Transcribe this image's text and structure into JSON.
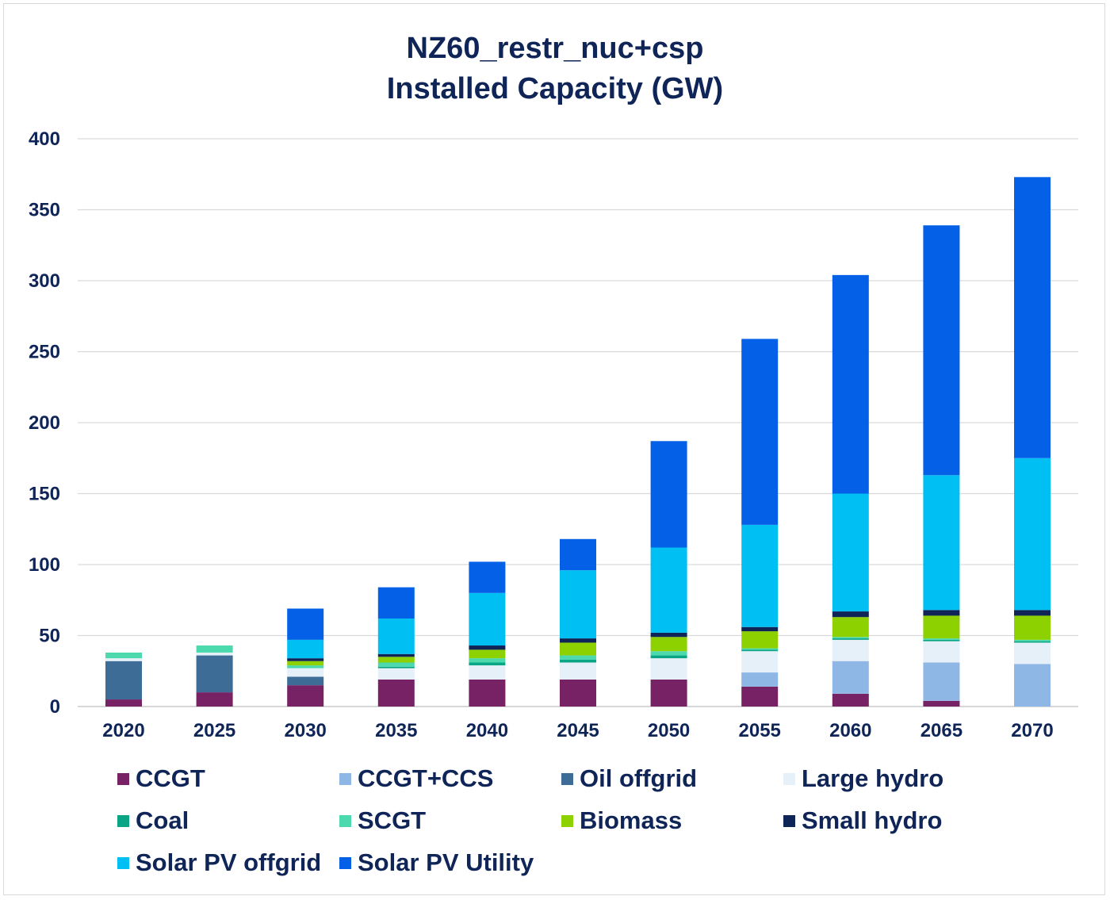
{
  "chart_data": {
    "type": "bar",
    "stacked": true,
    "title": "NZ60_restr_nuc+csp",
    "subtitle": "Installed Capacity (GW)",
    "xlabel": "",
    "ylabel": "",
    "ylim": [
      0,
      400
    ],
    "yticks": [
      0,
      50,
      100,
      150,
      200,
      250,
      300,
      350,
      400
    ],
    "grid": true,
    "legend_position": "bottom",
    "categories": [
      "2020",
      "2025",
      "2030",
      "2035",
      "2040",
      "2045",
      "2050",
      "2055",
      "2060",
      "2065",
      "2070"
    ],
    "series": [
      {
        "name": "CCGT",
        "color": "#772265",
        "values": [
          5,
          10,
          15,
          19,
          19,
          19,
          19,
          14,
          9,
          4,
          0
        ]
      },
      {
        "name": "CCGT+CCS",
        "color": "#8fb7e6",
        "values": [
          0,
          0,
          0,
          0,
          0,
          0,
          0,
          10,
          23,
          27,
          30
        ]
      },
      {
        "name": "Oil offgrid",
        "color": "#3d6c97",
        "values": [
          27,
          26,
          6,
          0,
          0,
          0,
          0,
          0,
          0,
          0,
          0
        ]
      },
      {
        "name": "Large hydro",
        "color": "#e6f0f9",
        "values": [
          2,
          2,
          6,
          8,
          10,
          12,
          15,
          15,
          15,
          15,
          15
        ]
      },
      {
        "name": "Coal",
        "color": "#0aa585",
        "values": [
          0,
          0,
          0,
          1,
          2,
          2,
          2,
          1,
          1,
          1,
          1
        ]
      },
      {
        "name": "SCGT",
        "color": "#4dd9ae",
        "values": [
          4,
          5,
          2,
          3,
          3,
          3,
          3,
          1,
          1,
          1,
          1
        ]
      },
      {
        "name": "Biomass",
        "color": "#8ed100",
        "values": [
          0,
          0,
          3,
          4,
          6,
          9,
          10,
          12,
          14,
          16,
          17
        ]
      },
      {
        "name": "Small hydro",
        "color": "#0f2557",
        "values": [
          0,
          0,
          2,
          2,
          3,
          3,
          3,
          3,
          4,
          4,
          4
        ]
      },
      {
        "name": "Solar PV offgrid",
        "color": "#00bff3",
        "values": [
          0,
          0,
          13,
          25,
          37,
          48,
          60,
          72,
          83,
          95,
          107
        ]
      },
      {
        "name": "Solar PV Utility",
        "color": "#0560e8",
        "values": [
          0,
          0,
          22,
          22,
          22,
          22,
          75,
          131,
          154,
          176,
          198
        ]
      }
    ]
  }
}
